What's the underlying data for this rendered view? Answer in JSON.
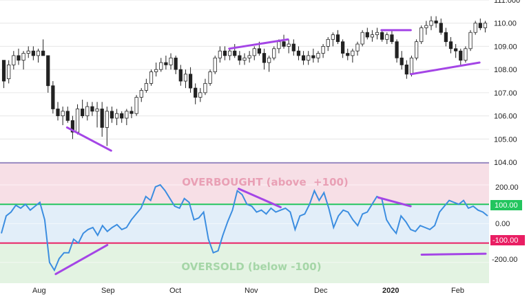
{
  "chart_data": [
    {
      "type": "candlestick",
      "ylim": [
        104.0,
        111.0
      ],
      "yticks": [
        "111.000",
        "110.00",
        "109.00",
        "108.00",
        "107.00",
        "106.00",
        "105.00",
        "104.00"
      ],
      "ytick_values": [
        111.0,
        110.0,
        109.0,
        108.0,
        107.0,
        106.0,
        105.0,
        104.0
      ],
      "grid": true,
      "ohlc": [
        [
          108.4,
          108.4,
          107.2,
          107.5
        ],
        [
          107.6,
          108.4,
          107.4,
          108.2
        ],
        [
          108.2,
          108.8,
          108.0,
          108.6
        ],
        [
          108.6,
          108.9,
          108.2,
          108.4
        ],
        [
          108.4,
          108.8,
          108.0,
          108.7
        ],
        [
          108.7,
          109.0,
          108.5,
          108.8
        ],
        [
          108.8,
          109.0,
          108.4,
          108.6
        ],
        [
          108.6,
          108.9,
          108.3,
          108.8
        ],
        [
          108.8,
          109.3,
          108.6,
          108.6
        ],
        [
          108.6,
          108.6,
          107.0,
          107.3
        ],
        [
          107.3,
          107.5,
          106.1,
          106.3
        ],
        [
          106.3,
          106.6,
          105.8,
          106.0
        ],
        [
          106.0,
          106.4,
          105.6,
          106.2
        ],
        [
          106.2,
          106.4,
          105.7,
          105.8
        ],
        [
          105.8,
          106.0,
          105.0,
          105.3
        ],
        [
          105.3,
          106.5,
          105.2,
          106.3
        ],
        [
          106.3,
          106.7,
          105.9,
          106.0
        ],
        [
          106.0,
          106.6,
          105.8,
          106.4
        ],
        [
          106.4,
          106.6,
          106.0,
          106.2
        ],
        [
          106.2,
          106.6,
          105.5,
          106.3
        ],
        [
          106.3,
          106.6,
          105.1,
          105.5
        ],
        [
          105.5,
          106.4,
          104.7,
          106.2
        ],
        [
          106.2,
          106.4,
          105.7,
          105.9
        ],
        [
          105.9,
          106.3,
          105.6,
          106.1
        ],
        [
          106.1,
          106.2,
          105.7,
          105.9
        ],
        [
          105.9,
          106.3,
          105.6,
          106.2
        ],
        [
          106.2,
          106.4,
          105.9,
          106.1
        ],
        [
          106.1,
          106.9,
          106.0,
          106.8
        ],
        [
          106.8,
          107.2,
          106.6,
          107.1
        ],
        [
          107.1,
          107.6,
          107.0,
          107.4
        ],
        [
          107.4,
          108.0,
          107.3,
          107.9
        ],
        [
          107.9,
          108.3,
          107.7,
          108.0
        ],
        [
          108.0,
          108.5,
          107.9,
          108.3
        ],
        [
          108.3,
          108.6,
          108.0,
          108.2
        ],
        [
          108.2,
          108.7,
          108.0,
          108.5
        ],
        [
          108.5,
          108.6,
          107.8,
          108.0
        ],
        [
          108.0,
          108.2,
          107.3,
          107.5
        ],
        [
          107.5,
          108.0,
          107.2,
          107.8
        ],
        [
          107.8,
          108.1,
          107.0,
          107.2
        ],
        [
          107.2,
          107.4,
          106.5,
          106.8
        ],
        [
          106.8,
          107.2,
          106.6,
          107.0
        ],
        [
          107.0,
          107.6,
          106.9,
          107.4
        ],
        [
          107.4,
          108.0,
          107.3,
          107.9
        ],
        [
          107.9,
          108.6,
          107.8,
          108.5
        ],
        [
          108.5,
          109.0,
          108.3,
          108.8
        ],
        [
          108.8,
          109.0,
          108.4,
          108.6
        ],
        [
          108.6,
          108.9,
          108.4,
          108.8
        ],
        [
          108.8,
          109.1,
          108.5,
          108.6
        ],
        [
          108.6,
          108.8,
          108.2,
          108.4
        ],
        [
          108.4,
          108.7,
          108.2,
          108.5
        ],
        [
          108.5,
          108.8,
          108.3,
          108.6
        ],
        [
          108.6,
          109.0,
          108.4,
          108.9
        ],
        [
          108.9,
          109.2,
          108.6,
          108.7
        ],
        [
          108.7,
          108.9,
          108.0,
          108.3
        ],
        [
          108.3,
          108.6,
          107.9,
          108.5
        ],
        [
          108.5,
          109.0,
          108.4,
          108.9
        ],
        [
          108.9,
          109.3,
          108.7,
          109.2
        ],
        [
          109.2,
          109.5,
          108.9,
          109.0
        ],
        [
          109.0,
          109.3,
          108.7,
          109.1
        ],
        [
          109.1,
          109.3,
          108.6,
          108.8
        ],
        [
          108.8,
          109.0,
          108.4,
          108.6
        ],
        [
          108.6,
          108.8,
          108.2,
          108.4
        ],
        [
          108.4,
          108.8,
          108.2,
          108.6
        ],
        [
          108.6,
          108.9,
          108.3,
          108.5
        ],
        [
          108.5,
          108.8,
          108.3,
          108.7
        ],
        [
          108.7,
          109.1,
          108.5,
          109.0
        ],
        [
          109.0,
          109.4,
          108.8,
          109.3
        ],
        [
          109.3,
          109.6,
          109.0,
          109.5
        ],
        [
          109.5,
          109.7,
          109.1,
          109.2
        ],
        [
          109.2,
          109.3,
          108.5,
          108.7
        ],
        [
          108.7,
          108.9,
          108.4,
          108.6
        ],
        [
          108.6,
          108.9,
          108.3,
          108.8
        ],
        [
          108.8,
          109.2,
          108.6,
          109.1
        ],
        [
          109.1,
          109.7,
          109.0,
          109.6
        ],
        [
          109.6,
          109.8,
          109.3,
          109.4
        ],
        [
          109.4,
          109.7,
          109.2,
          109.5
        ],
        [
          109.5,
          109.8,
          109.3,
          109.6
        ],
        [
          109.6,
          109.7,
          109.2,
          109.3
        ],
        [
          109.3,
          109.6,
          109.1,
          109.5
        ],
        [
          109.5,
          109.7,
          109.1,
          109.2
        ],
        [
          109.2,
          109.3,
          108.3,
          108.5
        ],
        [
          108.5,
          108.8,
          108.0,
          108.2
        ],
        [
          108.2,
          108.4,
          107.6,
          107.8
        ],
        [
          107.8,
          108.6,
          107.7,
          108.5
        ],
        [
          108.5,
          109.3,
          108.4,
          109.2
        ],
        [
          109.2,
          109.9,
          109.1,
          109.8
        ],
        [
          109.8,
          110.1,
          109.5,
          109.9
        ],
        [
          109.9,
          110.3,
          109.7,
          110.1
        ],
        [
          110.1,
          110.3,
          109.8,
          110.0
        ],
        [
          110.0,
          110.2,
          109.5,
          109.6
        ],
        [
          109.6,
          109.8,
          109.0,
          109.2
        ],
        [
          109.2,
          109.4,
          108.7,
          108.9
        ],
        [
          108.9,
          109.1,
          108.5,
          108.8
        ],
        [
          108.8,
          108.9,
          108.2,
          108.4
        ],
        [
          108.4,
          109.0,
          108.3,
          108.9
        ],
        [
          108.9,
          109.7,
          108.8,
          109.6
        ],
        [
          109.6,
          110.1,
          109.5,
          110.0
        ],
        [
          110.0,
          110.2,
          109.7,
          109.8
        ],
        [
          109.8,
          110.1,
          109.6,
          110.0
        ]
      ]
    },
    {
      "type": "line",
      "series": [
        {
          "values": [
            -50,
            40,
            60,
            95,
            80,
            100,
            70,
            90,
            110,
            20,
            -200,
            -240,
            -180,
            -150,
            -150,
            -80,
            -100,
            -50,
            -30,
            -20,
            -60,
            -10,
            -40,
            -20,
            -5,
            -30,
            -20,
            20,
            50,
            80,
            140,
            120,
            190,
            200,
            170,
            130,
            90,
            80,
            130,
            110,
            20,
            30,
            60,
            -80,
            -150,
            -140,
            -60,
            10,
            70,
            170,
            150,
            100,
            90,
            60,
            70,
            50,
            80,
            60,
            70,
            80,
            60,
            -30,
            40,
            50,
            100,
            170,
            120,
            160,
            80,
            -20,
            40,
            70,
            60,
            20,
            -10,
            50,
            60,
            100,
            140,
            130,
            20,
            -20,
            -50,
            40,
            10,
            -30,
            -40,
            -10,
            -20,
            -30,
            -10,
            60,
            90,
            120,
            110,
            100,
            120,
            80,
            90,
            70,
            60,
            40
          ]
        }
      ],
      "ylim": [
        -300,
        310
      ],
      "yticks": [
        "200.00",
        "0.00",
        "-200.00"
      ],
      "ytick_values": [
        200,
        0,
        -200
      ],
      "levels": [
        {
          "value": 100,
          "label": "100.00",
          "color": "#22c55e"
        },
        {
          "value": -100,
          "label": "-100.00",
          "color": "#e91e63"
        }
      ],
      "zones": [
        {
          "label": "OVERBOUGHT (above  +100)",
          "color": "#e9a0b5",
          "fill": "#f7dfe6"
        },
        {
          "label": "OVERSOLD (below -100)",
          "color": "#a5d6a7",
          "fill": "#e3f3e2"
        }
      ],
      "line_color": "#3b8de0"
    }
  ],
  "xticks": [
    "Aug",
    "Sep",
    "Oct",
    "Nov",
    "Dec",
    "2020",
    "Jan",
    "Feb"
  ],
  "colors": {
    "divergence": "#a445e6",
    "candle_up": "#ffffff",
    "candle_down": "#222222",
    "axis_text": "#222222",
    "grid": "#e6e6e6"
  }
}
